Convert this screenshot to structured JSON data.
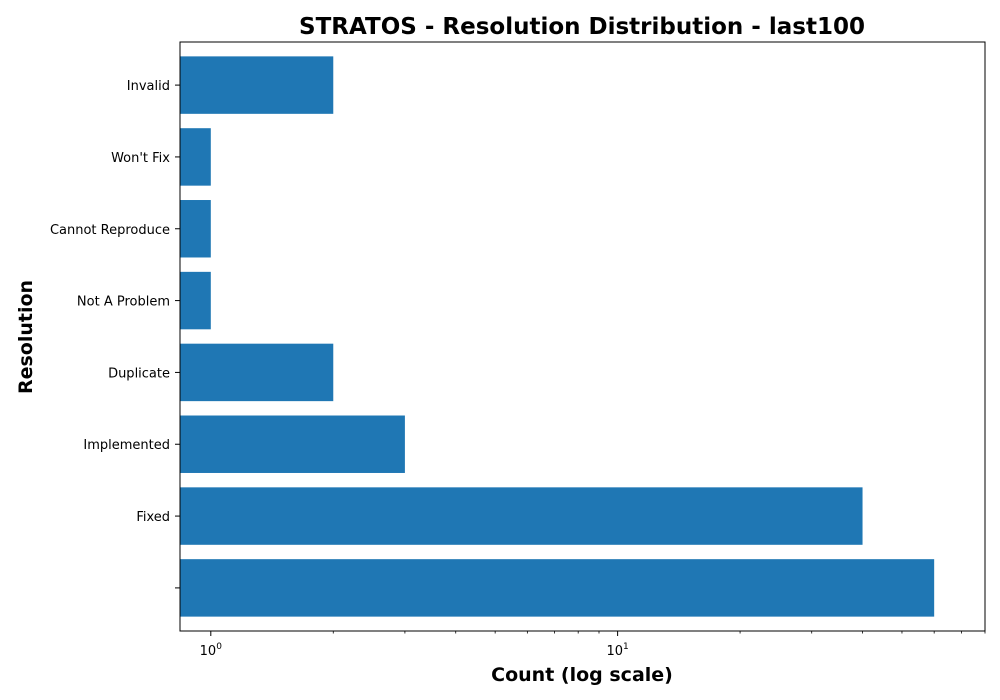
{
  "chart_data": {
    "type": "bar",
    "orientation": "horizontal",
    "title": "STRATOS - Resolution Distribution - last100",
    "xlabel": "Count (log scale)",
    "ylabel": "Resolution",
    "xscale": "log",
    "xlim": [
      0.84,
      80
    ],
    "x_major_ticks": [
      {
        "base": "10",
        "exp": "0",
        "value": 1
      },
      {
        "base": "10",
        "exp": "1",
        "value": 10
      }
    ],
    "categories": [
      "",
      "Fixed",
      "Implemented",
      "Duplicate",
      "Not A Problem",
      "Cannot Reproduce",
      "Won't Fix",
      "Invalid"
    ],
    "values": [
      60,
      40,
      3,
      2,
      1,
      1,
      1,
      2
    ],
    "bar_color": "#1f77b4",
    "grid": false,
    "legend": "none"
  }
}
